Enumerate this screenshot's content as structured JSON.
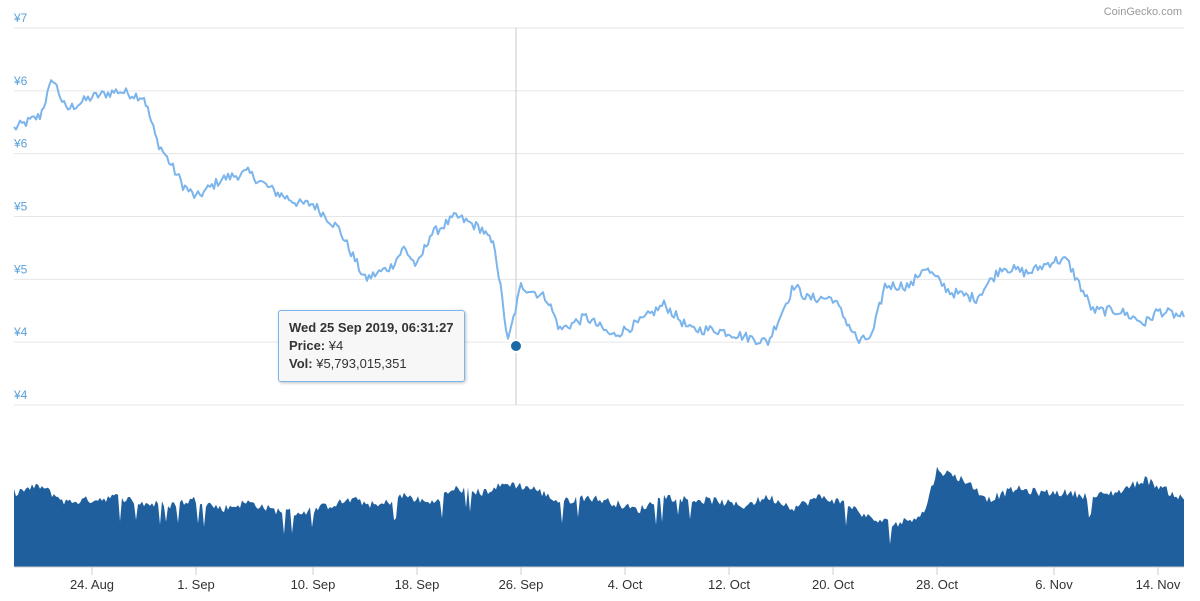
{
  "credit": "CoinGecko.com",
  "colors": {
    "price_line": "#7cb5ec",
    "volume_fill": "#1f5f9e",
    "axis_label": "#5aa0d8",
    "grid": "#e6e6e6"
  },
  "tooltip": {
    "title": "Wed 25 Sep 2019, 06:31:27",
    "price_label": "Price:",
    "price_value": "¥4",
    "vol_label": "Vol:",
    "vol_value": "¥5,793,015,351"
  },
  "chart_data": {
    "type": "line",
    "price_axis": {
      "ticks": [
        {
          "value": 7.0,
          "label": "¥7"
        },
        {
          "value": 6.5,
          "label": "¥6"
        },
        {
          "value": 6.0,
          "label": "¥6"
        },
        {
          "value": 5.5,
          "label": "¥5"
        },
        {
          "value": 5.0,
          "label": "¥5"
        },
        {
          "value": 4.5,
          "label": "¥4"
        },
        {
          "value": 4.0,
          "label": "¥4"
        }
      ],
      "ylim": [
        4.0,
        7.0
      ]
    },
    "x_axis": {
      "ticks": [
        "24. Aug",
        "1. Sep",
        "10. Sep",
        "18. Sep",
        "26. Sep",
        "4. Oct",
        "12. Oct",
        "20. Oct",
        "28. Oct",
        "6. Nov",
        "14. Nov"
      ],
      "start": "2019-08-18",
      "end": "2019-11-16"
    },
    "price_series": {
      "x": [
        "2019-08-18",
        "2019-08-20",
        "2019-08-21",
        "2019-08-22",
        "2019-08-24",
        "2019-08-26",
        "2019-08-28",
        "2019-08-29",
        "2019-08-31",
        "2019-09-01",
        "2019-09-03",
        "2019-09-05",
        "2019-09-07",
        "2019-09-08",
        "2019-09-09",
        "2019-09-10",
        "2019-09-12",
        "2019-09-14",
        "2019-09-16",
        "2019-09-17",
        "2019-09-18",
        "2019-09-19",
        "2019-09-21",
        "2019-09-23",
        "2019-09-24",
        "2019-09-25",
        "2019-09-26",
        "2019-09-28",
        "2019-09-29",
        "2019-10-01",
        "2019-10-03",
        "2019-10-05",
        "2019-10-07",
        "2019-10-09",
        "2019-10-11",
        "2019-10-13",
        "2019-10-15",
        "2019-10-17",
        "2019-10-18",
        "2019-10-20",
        "2019-10-22",
        "2019-10-23",
        "2019-10-24",
        "2019-10-26",
        "2019-10-27",
        "2019-10-29",
        "2019-10-31",
        "2019-11-02",
        "2019-11-04",
        "2019-11-06",
        "2019-11-07",
        "2019-11-09",
        "2019-11-11",
        "2019-11-13",
        "2019-11-14",
        "2019-11-16"
      ],
      "values": [
        6.2,
        6.3,
        6.6,
        6.35,
        6.45,
        6.5,
        6.45,
        6.1,
        5.75,
        5.65,
        5.8,
        5.85,
        5.7,
        5.65,
        5.6,
        5.6,
        5.4,
        5.0,
        5.1,
        5.25,
        5.1,
        5.35,
        5.5,
        5.4,
        5.25,
        4.5,
        4.95,
        4.85,
        4.6,
        4.7,
        4.55,
        4.65,
        4.8,
        4.6,
        4.6,
        4.55,
        4.5,
        4.95,
        4.85,
        4.85,
        4.5,
        4.55,
        4.95,
        4.95,
        5.1,
        4.9,
        4.85,
        5.1,
        5.05,
        5.15,
        5.15,
        4.75,
        4.75,
        4.65,
        4.75,
        4.7
      ]
    },
    "volume_series": {
      "x": [
        "2019-08-18",
        "2019-08-20",
        "2019-08-22",
        "2019-08-24",
        "2019-08-26",
        "2019-08-28",
        "2019-08-30",
        "2019-09-01",
        "2019-09-03",
        "2019-09-05",
        "2019-09-07",
        "2019-09-09",
        "2019-09-11",
        "2019-09-13",
        "2019-09-15",
        "2019-09-17",
        "2019-09-19",
        "2019-09-21",
        "2019-09-23",
        "2019-09-25",
        "2019-09-27",
        "2019-09-29",
        "2019-10-01",
        "2019-10-03",
        "2019-10-05",
        "2019-10-07",
        "2019-10-09",
        "2019-10-11",
        "2019-10-13",
        "2019-10-15",
        "2019-10-17",
        "2019-10-19",
        "2019-10-21",
        "2019-10-23",
        "2019-10-25",
        "2019-10-27",
        "2019-10-28",
        "2019-10-30",
        "2019-11-01",
        "2019-11-03",
        "2019-11-05",
        "2019-11-07",
        "2019-11-09",
        "2019-11-11",
        "2019-11-13",
        "2019-11-16"
      ],
      "values": [
        0.55,
        0.6,
        0.48,
        0.5,
        0.52,
        0.47,
        0.46,
        0.5,
        0.43,
        0.48,
        0.42,
        0.4,
        0.45,
        0.5,
        0.45,
        0.53,
        0.47,
        0.58,
        0.55,
        0.62,
        0.58,
        0.48,
        0.52,
        0.48,
        0.42,
        0.52,
        0.5,
        0.49,
        0.45,
        0.52,
        0.44,
        0.52,
        0.47,
        0.35,
        0.32,
        0.4,
        0.72,
        0.65,
        0.5,
        0.58,
        0.55,
        0.55,
        0.52,
        0.56,
        0.65,
        0.5
      ]
    }
  }
}
